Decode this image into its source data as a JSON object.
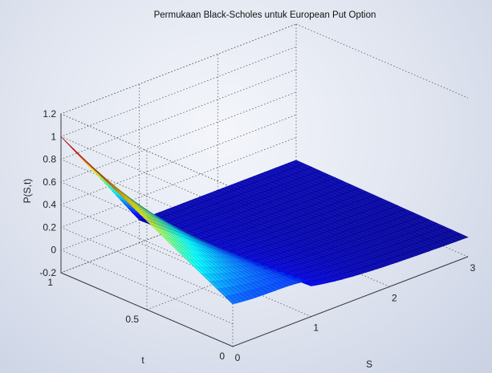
{
  "chart_data": {
    "type": "surface3d",
    "title": "Permukaan Black-Scholes untuk European Put Option",
    "xlabel": "S",
    "ylabel": "t",
    "zlabel": "P(S,t)",
    "strike": 1,
    "x_range": [
      0,
      3
    ],
    "y_range": [
      0,
      1
    ],
    "zlim": [
      -0.2,
      1.2
    ],
    "x_ticks": [
      "0",
      "1",
      "2",
      "3"
    ],
    "y_ticks": [
      "0",
      "0.5",
      "1"
    ],
    "z_ticks": [
      "-0.2",
      "0",
      "0.2",
      "0.4",
      "0.6",
      "0.8",
      "1",
      "1.2"
    ],
    "grid": true,
    "colormap": "jet",
    "surface": {
      "note_values": "P(S,t): at t=1 equals max(1-S,0); decays smoothly toward 0 for large S",
      "samples": [
        {
          "S": 0,
          "t": 1,
          "P": 1.0
        },
        {
          "S": 1,
          "t": 1,
          "P": 0.0
        },
        {
          "S": 3,
          "t": 1,
          "P": 0.0
        },
        {
          "S": 0,
          "t": 0,
          "P": 0.16
        },
        {
          "S": 1,
          "t": 0,
          "P": 0.05
        },
        {
          "S": 3,
          "t": 0,
          "P": -0.02
        }
      ]
    }
  }
}
